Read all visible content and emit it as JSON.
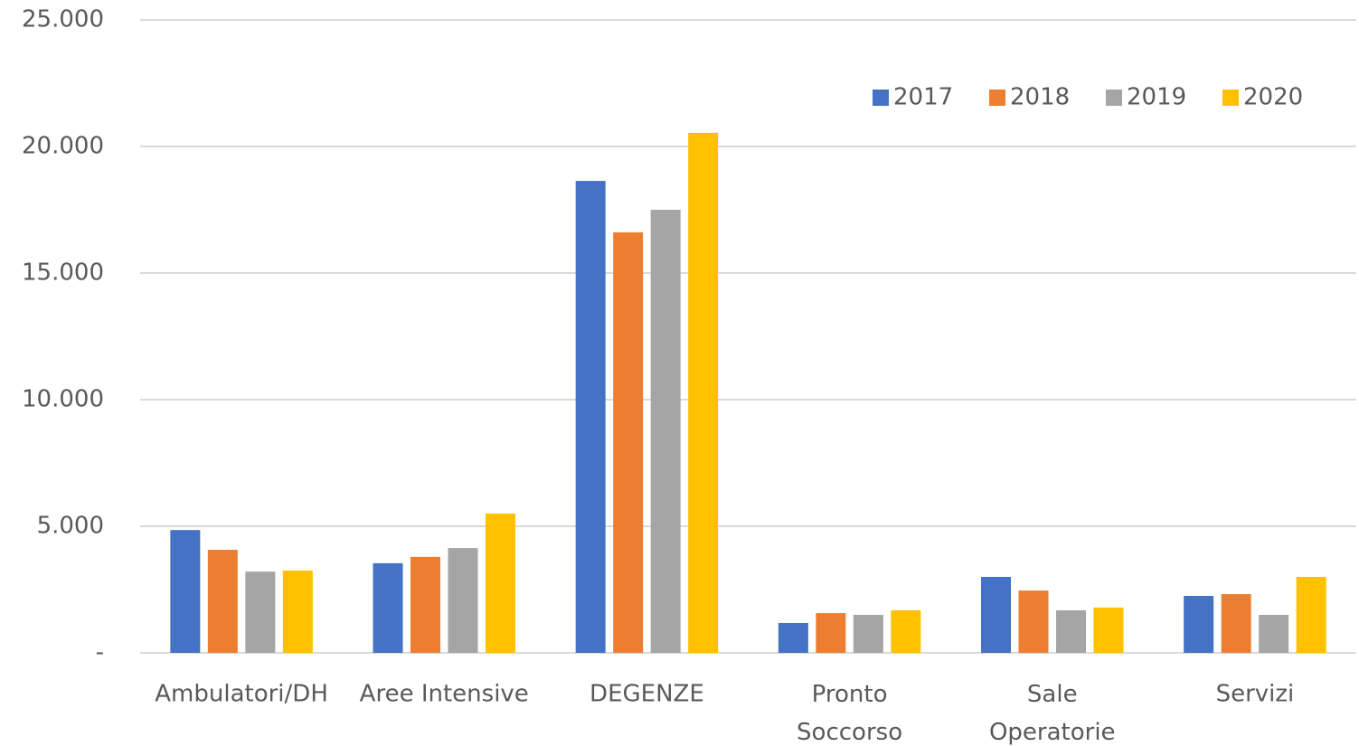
{
  "chart_data": {
    "type": "bar",
    "categories": [
      "Ambulatori/DH",
      "Aree Intensive",
      "DEGENZE",
      "Pronto Soccorso",
      "Sale Operatorie",
      "Servizi"
    ],
    "series": [
      {
        "name": "2017",
        "color": "#4472c4",
        "values": [
          4850,
          3540,
          18640,
          1180,
          3000,
          2250
        ]
      },
      {
        "name": "2018",
        "color": "#ed7d31",
        "values": [
          4070,
          3790,
          16610,
          1570,
          2460,
          2320
        ]
      },
      {
        "name": "2019",
        "color": "#a5a5a5",
        "values": [
          3210,
          4140,
          17500,
          1500,
          1680,
          1500
        ]
      },
      {
        "name": "2020",
        "color": "#ffc000",
        "values": [
          3250,
          5500,
          20540,
          1680,
          1790,
          3000
        ]
      }
    ],
    "ylim": [
      0,
      25000
    ],
    "yticks": [
      {
        "value": 0,
        "label": "-"
      },
      {
        "value": 5000,
        "label": "5.000"
      },
      {
        "value": 10000,
        "label": "10.000"
      },
      {
        "value": 15000,
        "label": "15.000"
      },
      {
        "value": 20000,
        "label": "20.000"
      },
      {
        "value": 25000,
        "label": "25.000"
      }
    ],
    "grid": true,
    "legend": "top-right"
  }
}
